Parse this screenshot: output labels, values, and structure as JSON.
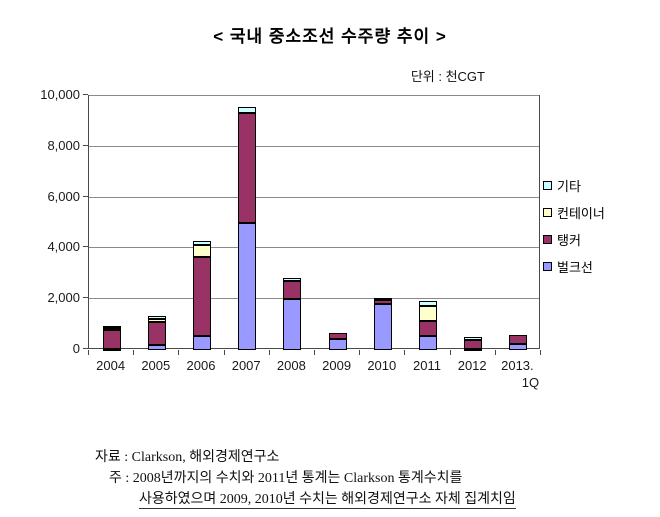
{
  "title": "< 국내 중소조선 수주량 추이 >",
  "unit_label": "단위 : 천CGT",
  "chart_data": {
    "type": "bar",
    "stacked": true,
    "title": "국내 중소조선 수주량 추이",
    "ylabel": "천CGT",
    "xlabel": "",
    "grid": true,
    "legend_position": "right",
    "ylim": [
      0,
      10000
    ],
    "ytick_step": 2000,
    "ytick_labels": [
      "0",
      "2,000",
      "4,000",
      "6,000",
      "8,000",
      "10,000"
    ],
    "categories": [
      "2004",
      "2005",
      "2006",
      "2007",
      "2008",
      "2009",
      "2010",
      "2011",
      "2012",
      "2013."
    ],
    "last_category_line2": "1Q",
    "series": [
      {
        "name": "벌크선",
        "color": "#9999FF",
        "values": [
          50,
          200,
          550,
          5000,
          2000,
          450,
          1800,
          550,
          30,
          230
        ]
      },
      {
        "name": "탱커",
        "color": "#993366",
        "values": [
          750,
          900,
          3100,
          4350,
          700,
          200,
          150,
          600,
          380,
          370
        ]
      },
      {
        "name": "컨테이너",
        "color": "#FFFFCC",
        "values": [
          50,
          120,
          500,
          0,
          0,
          0,
          100,
          600,
          0,
          0
        ]
      },
      {
        "name": "기타",
        "color": "#CCFFFF",
        "values": [
          100,
          120,
          150,
          200,
          150,
          0,
          0,
          180,
          120,
          0
        ]
      }
    ],
    "legend_order": [
      "기타",
      "컨테이너",
      "탱커",
      "벌크선"
    ]
  },
  "colors": {
    "grid": "#8a8a8a",
    "plot_border": "#4a4a4a",
    "bar_border": "#000000"
  },
  "footer": {
    "line1": "자료 : Clarkson, 해외경제연구소",
    "line2": "주 : 2008년까지의 수치와 2011년 통계는 Clarkson 통계수치를",
    "line3": "사용하였으며 2009, 2010년 수치는 해외경제연구소 자체 집계치임"
  }
}
